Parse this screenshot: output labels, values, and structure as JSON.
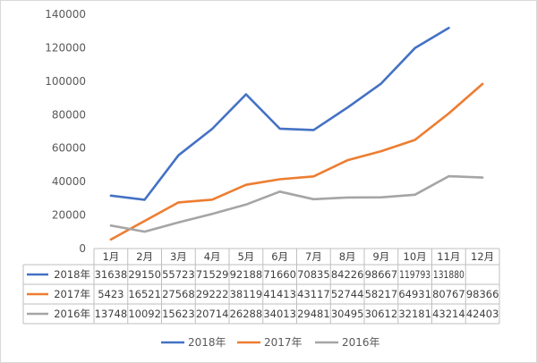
{
  "chart_data": {
    "type": "line",
    "title": "",
    "xlabel": "",
    "ylabel": "",
    "ylim": [
      0,
      140000
    ],
    "yticks": [
      0,
      20000,
      40000,
      60000,
      80000,
      100000,
      120000,
      140000
    ],
    "grid": false,
    "legend": "bottom",
    "data_table": true,
    "categories": [
      "1月",
      "2月",
      "3月",
      "4月",
      "5月",
      "6月",
      "7月",
      "8月",
      "9月",
      "10月",
      "11月",
      "12月"
    ],
    "series": [
      {
        "name": "2018年",
        "color": "#4472c4",
        "values": [
          31638,
          29150,
          55723,
          71529,
          92188,
          71660,
          70835,
          84226,
          98667,
          119793,
          131880,
          null
        ]
      },
      {
        "name": "2017年",
        "color": "#ed7d31",
        "values": [
          5423,
          16521,
          27568,
          29222,
          38119,
          41413,
          43117,
          52744,
          58217,
          64931,
          80767,
          98366
        ]
      },
      {
        "name": "2016年",
        "color": "#a5a5a5",
        "values": [
          13748,
          10092,
          15623,
          20714,
          26288,
          34013,
          29481,
          30495,
          30612,
          32181,
          43214,
          42403
        ]
      }
    ]
  }
}
